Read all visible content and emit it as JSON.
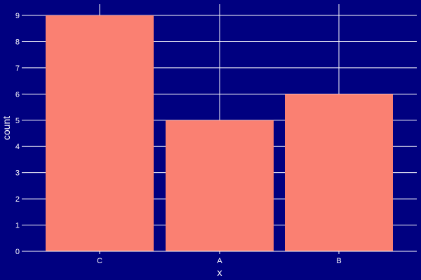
{
  "chart_data": {
    "type": "bar",
    "categories": [
      "C",
      "A",
      "B"
    ],
    "values": [
      9,
      5,
      6
    ],
    "title": "",
    "xlabel": "x",
    "ylabel": "count",
    "ylim": [
      0,
      9
    ],
    "yticks": [
      0,
      1,
      2,
      3,
      4,
      5,
      6,
      7,
      8,
      9
    ],
    "grid": true,
    "colors": {
      "background": "#000080",
      "bar": "#FA8072",
      "grid": "#FFFFFF",
      "text": "#FFFFFF"
    }
  }
}
